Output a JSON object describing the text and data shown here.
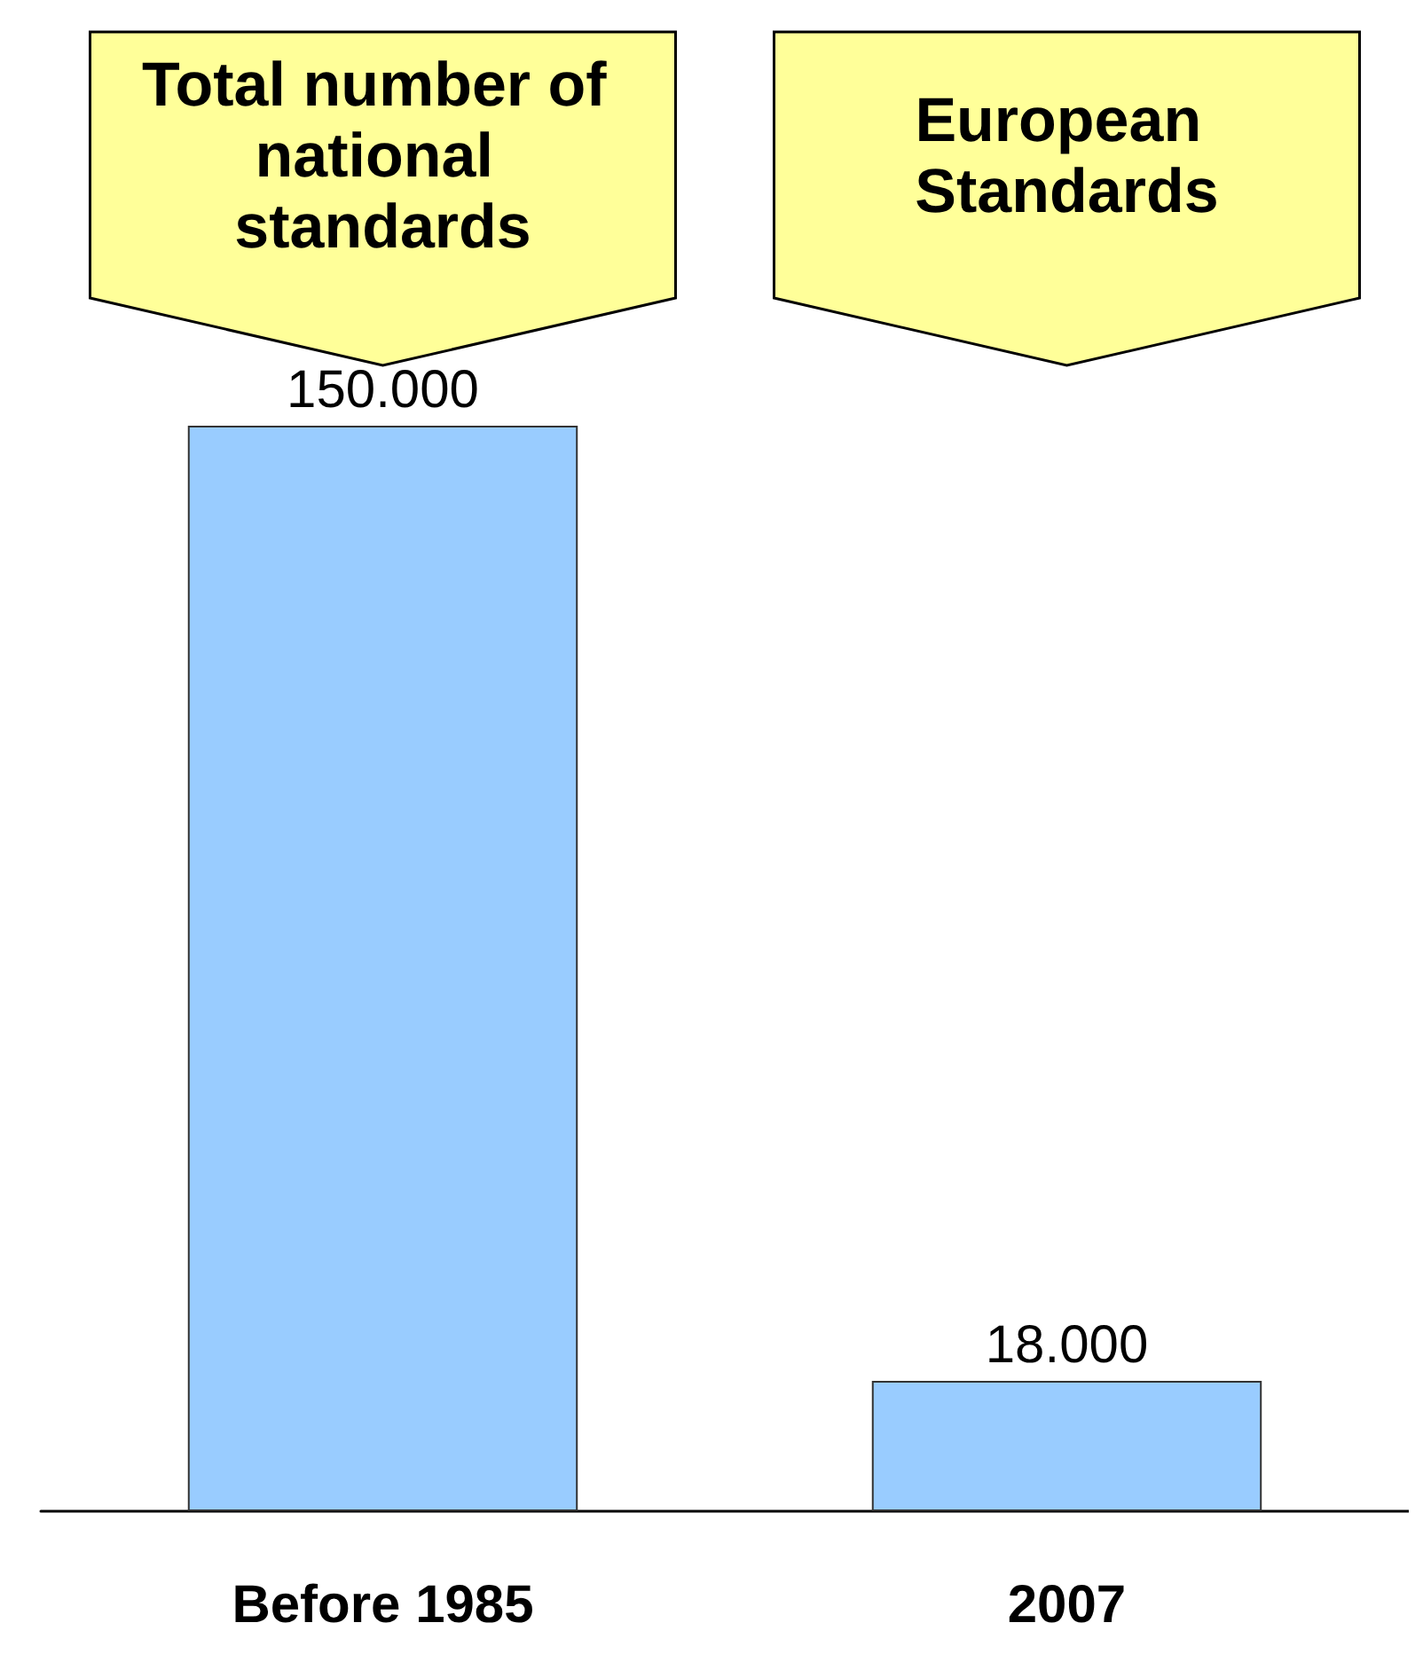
{
  "chart_data": {
    "type": "bar",
    "categories": [
      "Before 1985",
      "2007"
    ],
    "values": [
      150000,
      18000
    ],
    "value_labels": [
      "150.000",
      "18.000"
    ],
    "color": "#99ccff",
    "annotations": [
      "Total number of national standards",
      "European Standards"
    ]
  }
}
